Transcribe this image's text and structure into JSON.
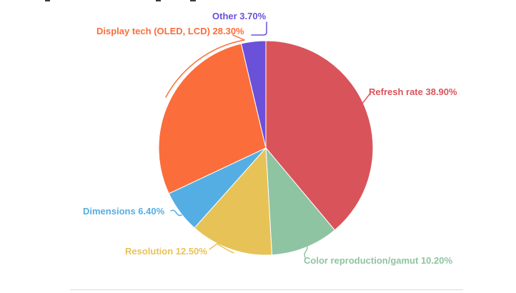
{
  "page": {
    "background": "#ffffff",
    "divider_color": "#dbdbdb"
  },
  "chart_data": {
    "type": "pie",
    "title": "",
    "unit": "%",
    "start_angle": 0,
    "direction": "clockwise",
    "labels_position": "outside-with-connectors",
    "slices": [
      {
        "label": "Refresh rate",
        "value": 38.9,
        "display": "Refresh rate 38.90%",
        "color": "#D9545A"
      },
      {
        "label": "Color reproduction/gamut",
        "value": 10.2,
        "display": "Color reproduction/gamut 10.20%",
        "color": "#8FC4A2"
      },
      {
        "label": "Resolution",
        "value": 12.5,
        "display": "Resolution 12.50%",
        "color": "#E7C257"
      },
      {
        "label": "Dimensions",
        "value": 6.4,
        "display": "Dimensions 6.40%",
        "color": "#55AEE3"
      },
      {
        "label": "Display tech (OLED, LCD)",
        "value": 28.3,
        "display": "Display tech (OLED, LCD) 28.30%",
        "color": "#FB6D3B"
      },
      {
        "label": "Other",
        "value": 3.7,
        "display": "Other 3.70%",
        "color": "#6B50D9"
      }
    ]
  }
}
